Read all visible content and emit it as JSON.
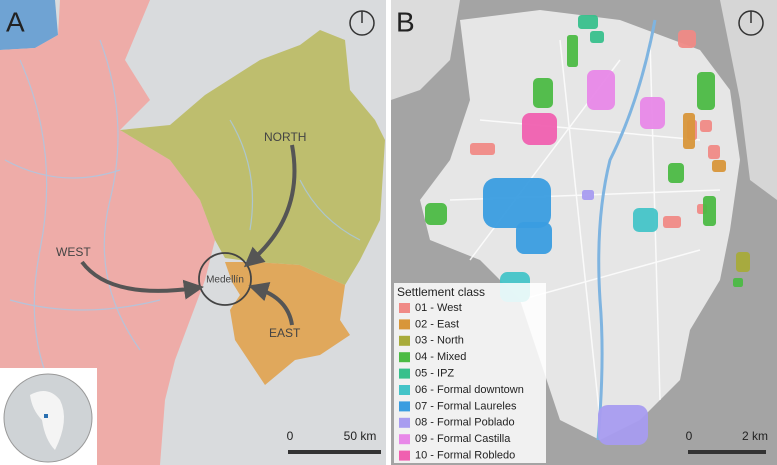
{
  "panels": [
    {
      "label": "A",
      "annotations": {
        "north": "NORTH",
        "west": "WEST",
        "east": "EAST",
        "city": "Medellín"
      },
      "scale_bar": {
        "start": "0",
        "end": "50 km"
      }
    },
    {
      "label": "B",
      "legend": {
        "title": "Settlement class",
        "items": [
          {
            "label": "01 - West",
            "color": "#f08a86"
          },
          {
            "label": "02 - East",
            "color": "#d8963a"
          },
          {
            "label": "03 - North",
            "color": "#a8ab3a"
          },
          {
            "label": "04 - Mixed",
            "color": "#4cbb44"
          },
          {
            "label": "05 - IPZ",
            "color": "#38c08c"
          },
          {
            "label": "06 - Formal downtown",
            "color": "#44c4c8"
          },
          {
            "label": "07 - Formal Laureles",
            "color": "#3a9de0"
          },
          {
            "label": "08 - Formal Poblado",
            "color": "#a89cf0"
          },
          {
            "label": "09 - Formal Castilla",
            "color": "#e888e8"
          },
          {
            "label": "10 - Formal Robledo",
            "color": "#f060b0"
          }
        ]
      },
      "scale_bar": {
        "start": "0",
        "end": "2 km"
      }
    }
  ]
}
